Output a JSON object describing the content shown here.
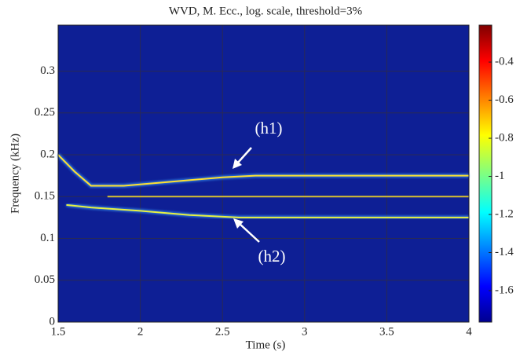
{
  "chart_data": {
    "type": "heatmap",
    "title": "WVD, M. Ecc., log. scale, threshold=3%",
    "xlabel": "Time (s)",
    "ylabel": "Frequency (kHz)",
    "xlim": [
      1.5,
      4
    ],
    "xticks": [
      1.5,
      2,
      2.5,
      3,
      3.5,
      4
    ],
    "ylim": [
      0,
      0.355
    ],
    "yticks": [
      0,
      0.05,
      0.1,
      0.15,
      0.2,
      0.25,
      0.3
    ],
    "grid": true,
    "background": "#0e1f95",
    "colorbar": {
      "clim": [
        -1.765,
        -0.206
      ],
      "ticks": [
        -0.4,
        -0.6,
        -0.8,
        -1,
        -1.2,
        -1.4,
        -1.6
      ]
    },
    "lines": [
      {
        "color": "#ffe030",
        "x": [
          1.5,
          1.6,
          1.7,
          1.9,
          2.2,
          2.5,
          2.7,
          3,
          3.5,
          4
        ],
        "values": [
          0.2,
          0.18,
          0.163,
          0.163,
          0.168,
          0.173,
          0.175,
          0.175,
          0.175,
          0.175
        ]
      },
      {
        "color": "#e8f040",
        "x": [
          1.55,
          1.7,
          2,
          2.3,
          2.6,
          3,
          3.5,
          4
        ],
        "values": [
          0.14,
          0.137,
          0.133,
          0.128,
          0.125,
          0.125,
          0.125,
          0.125
        ]
      },
      {
        "color": "#d8c030",
        "x": [
          1.8,
          4
        ],
        "values": [
          0.15,
          0.15
        ]
      }
    ],
    "annotations": [
      "(h1)",
      "(h2)"
    ]
  }
}
